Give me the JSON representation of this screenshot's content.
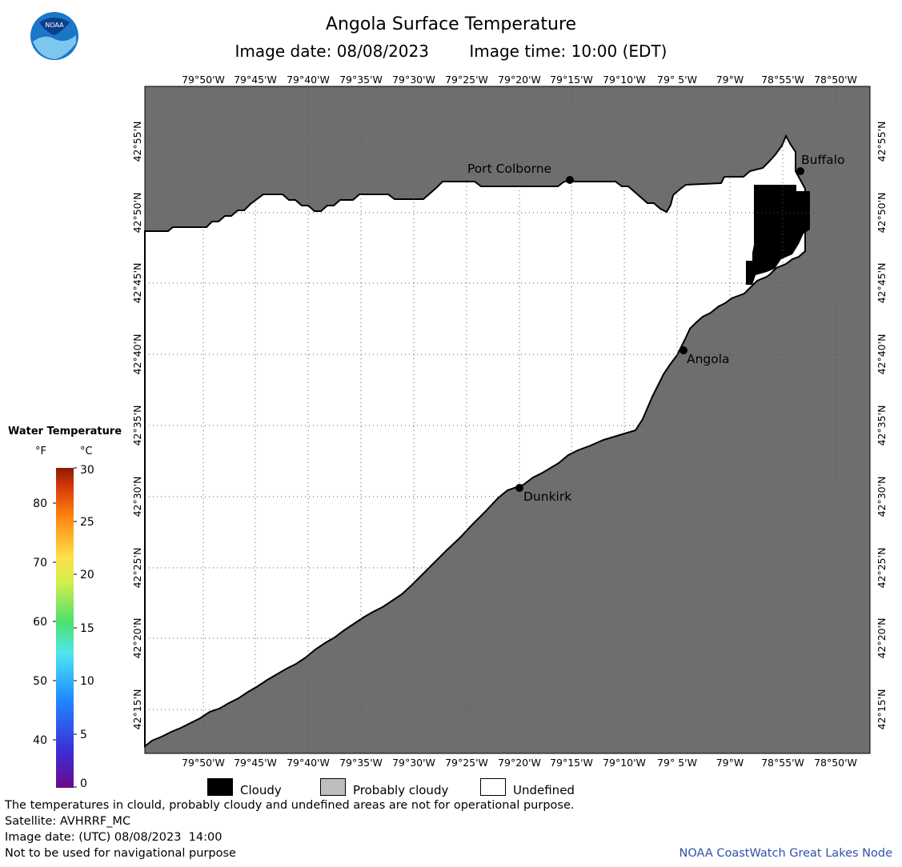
{
  "header": {
    "title": "Angola Surface Temperature",
    "image_date": "Image date: 08/08/2023",
    "image_time": "Image time: 10:00 (EDT)",
    "logo_text": "NOAA"
  },
  "map": {
    "lon_labels": [
      "79°50'W",
      "79°45'W",
      "79°40'W",
      "79°35'W",
      "79°30'W",
      "79°25'W",
      "79°20'W",
      "79°15'W",
      "79°10'W",
      "79° 5'W",
      "79°W",
      "78°55'W",
      "78°50'W"
    ],
    "lat_labels": [
      "42°55'N",
      "42°50'N",
      "42°45'N",
      "42°40'N",
      "42°35'N",
      "42°30'N",
      "42°25'N",
      "42°20'N",
      "42°15'N"
    ],
    "cities": [
      {
        "name": "Port Colborne"
      },
      {
        "name": "Buffalo"
      },
      {
        "name": "Angola"
      },
      {
        "name": "Dunkirk"
      }
    ],
    "colors": {
      "land": "#6e6e6e",
      "water_undefined": "#ffffff",
      "cloud": "#000000",
      "probably_cloudy": "#bebebe",
      "grid": "#7a7a7a"
    }
  },
  "scale": {
    "title": "Water Temperature",
    "unit_f": "°F",
    "unit_c": "°C",
    "f_ticks": [
      "80",
      "70",
      "60",
      "50",
      "40"
    ],
    "c_ticks": [
      "30",
      "25",
      "20",
      "15",
      "10",
      "5",
      "0"
    ]
  },
  "legend": {
    "cloudy": "Cloudy",
    "probably_cloudy": "Probably cloudy",
    "undefined": "Undefined"
  },
  "footer": {
    "disclaimer": "The temperatures in clould, probably cloudy and undefined areas are not for operational purpose.",
    "satellite": "Satellite: AVHRRF_MC",
    "utc_date": "Image date: (UTC) 08/08/2023  14:00",
    "navigation": "Not to be used for navigational purpose",
    "credit": "NOAA CoastWatch Great Lakes Node"
  }
}
